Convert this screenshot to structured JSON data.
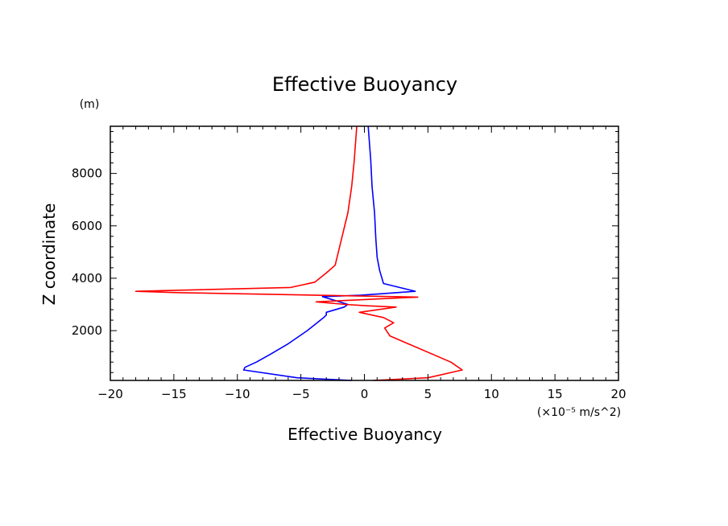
{
  "chart_data": {
    "type": "line",
    "title": "Effective Buoyancy",
    "xlabel": "Effective Buoyancy",
    "ylabel": "Z coordinate",
    "x_unit": "(×10⁻⁵ m/s^2)",
    "y_unit": "(m)",
    "xlim": [
      -20,
      20
    ],
    "ylim": [
      100,
      9800
    ],
    "x_ticks": [
      -20,
      -15,
      -10,
      -5,
      0,
      5,
      10,
      15,
      20
    ],
    "x_tick_labels": [
      "−20",
      "−15",
      "−10",
      "−5",
      "0",
      "5",
      "10",
      "15",
      "20"
    ],
    "y_ticks": [
      2000,
      4000,
      6000,
      8000
    ],
    "y_tick_labels": [
      "2000",
      "4000",
      "6000",
      "8000"
    ],
    "grid": false,
    "series": [
      {
        "color": "#0000ff",
        "points": [
          [
            -1.0,
            100
          ],
          [
            -5.3,
            200
          ],
          [
            -9.5,
            500
          ],
          [
            -9.4,
            600
          ],
          [
            -8.5,
            800
          ],
          [
            -7.4,
            1100
          ],
          [
            -6.0,
            1500
          ],
          [
            -4.5,
            2000
          ],
          [
            -3.2,
            2500
          ],
          [
            -3.0,
            2600
          ],
          [
            -3.0,
            2700
          ],
          [
            -1.6,
            2900
          ],
          [
            -1.3,
            3000
          ],
          [
            -3.3,
            3300
          ],
          [
            -0.3,
            3350
          ],
          [
            4.0,
            3500
          ],
          [
            1.5,
            3800
          ],
          [
            1.2,
            4300
          ],
          [
            1.0,
            4800
          ],
          [
            0.9,
            5500
          ],
          [
            0.8,
            6500
          ],
          [
            0.6,
            7500
          ],
          [
            0.5,
            8500
          ],
          [
            0.3,
            9800
          ]
        ]
      },
      {
        "color": "#ff0000",
        "points": [
          [
            0.7,
            100
          ],
          [
            5.0,
            200
          ],
          [
            7.7,
            500
          ],
          [
            6.8,
            800
          ],
          [
            2.0,
            1800
          ],
          [
            1.6,
            2100
          ],
          [
            2.3,
            2300
          ],
          [
            1.5,
            2500
          ],
          [
            -0.4,
            2700
          ],
          [
            2.5,
            2900
          ],
          [
            0.2,
            2950
          ],
          [
            -1.5,
            3000
          ],
          [
            -3.8,
            3100
          ],
          [
            4.2,
            3280
          ],
          [
            -14.5,
            3450
          ],
          [
            -18.0,
            3500
          ],
          [
            -5.8,
            3650
          ],
          [
            -3.9,
            3850
          ],
          [
            -3.0,
            4200
          ],
          [
            -2.3,
            4500
          ],
          [
            -1.8,
            5500
          ],
          [
            -1.3,
            6500
          ],
          [
            -1.0,
            7500
          ],
          [
            -0.8,
            8500
          ],
          [
            -0.6,
            9800
          ]
        ]
      }
    ]
  }
}
